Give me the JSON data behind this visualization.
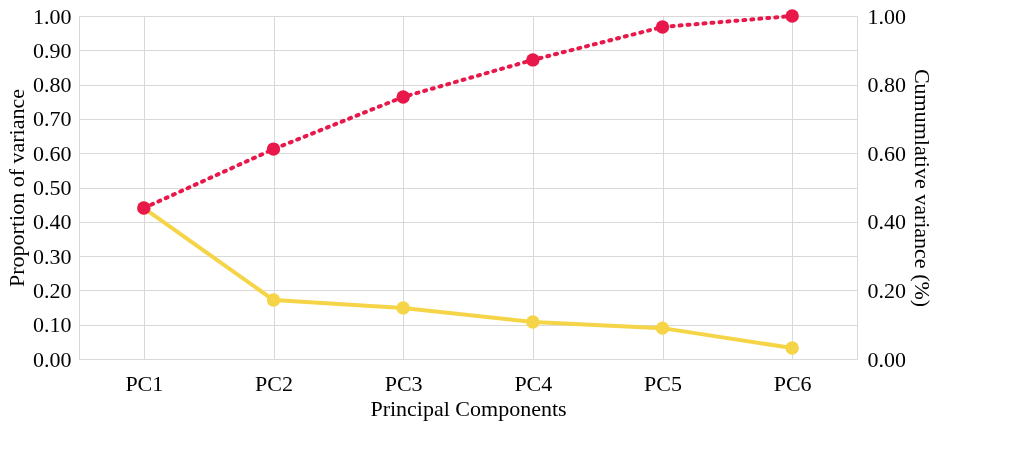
{
  "chart_data": {
    "type": "line",
    "xlabel": "Principal Components",
    "ylabel": "Proportion of variance",
    "y2label": "Cumumlative variance (%)",
    "categories": [
      "PC1",
      "PC2",
      "PC3",
      "PC4",
      "PC5",
      "PC6"
    ],
    "series": [
      {
        "color": "#f5d547",
        "values": [
          0.44,
          0.172,
          0.149,
          0.108,
          0.09,
          0.032
        ],
        "line_style": "solid",
        "marker": "circle"
      },
      {
        "color": "#e8194a",
        "values": [
          0.44,
          0.612,
          0.764,
          0.872,
          0.968,
          1.0
        ],
        "line_style": "dotted",
        "marker": "circle",
        "axis": "y2"
      }
    ],
    "ylim": [
      0,
      1.0
    ],
    "yticks": [
      {
        "value": 0,
        "label": "0.00"
      },
      {
        "value": 0.1,
        "label": "0.10"
      },
      {
        "value": 0.2,
        "label": "0.20"
      },
      {
        "value": 0.3,
        "label": "0.30"
      },
      {
        "value": 0.4,
        "label": "0.40"
      },
      {
        "value": 0.5,
        "label": "0.50"
      },
      {
        "value": 0.6,
        "label": "0.60"
      },
      {
        "value": 0.7,
        "label": "0.70"
      },
      {
        "value": 0.8,
        "label": "0.80"
      },
      {
        "value": 0.9,
        "label": "0.90"
      },
      {
        "value": 1.0,
        "label": "1.00"
      }
    ],
    "y2lim": [
      0,
      1.0
    ],
    "y2ticks": [
      {
        "value": 0,
        "label": "0.00"
      },
      {
        "value": 0.2,
        "label": "0.20"
      },
      {
        "value": 0.4,
        "label": "0.40"
      },
      {
        "value": 0.6,
        "label": "0.60"
      },
      {
        "value": 0.8,
        "label": "0.80"
      },
      {
        "value": 1.0,
        "label": "1.00"
      }
    ],
    "grid": true
  }
}
